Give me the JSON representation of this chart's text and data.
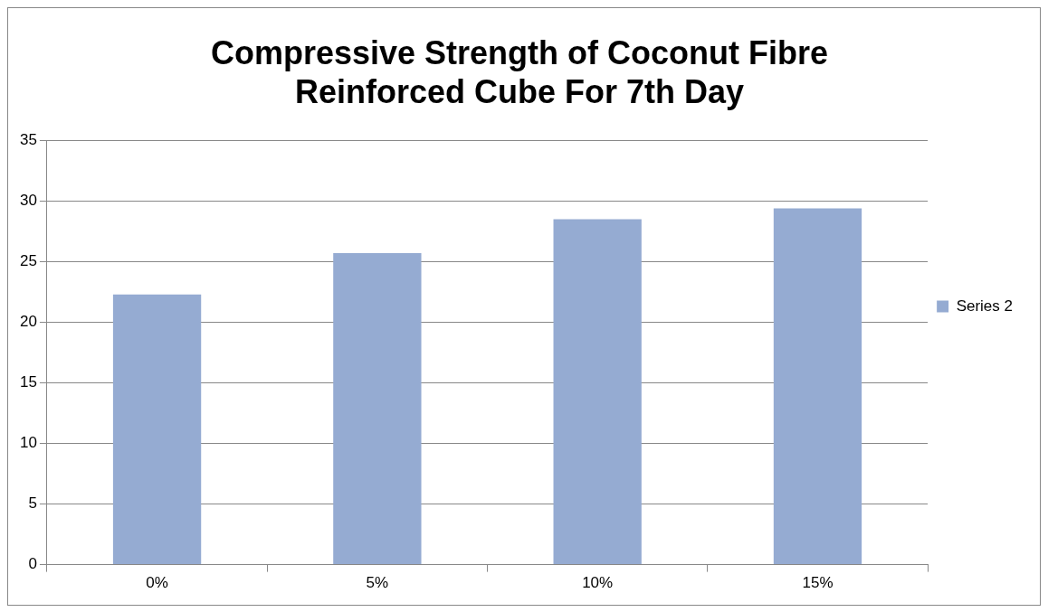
{
  "chart_data": {
    "type": "bar",
    "title": "Compressive Strength of Coconut Fibre Reinforced Cube For 7th Day",
    "categories": [
      "0%",
      "5%",
      "10%",
      "15%"
    ],
    "series": [
      {
        "name": "Series 2",
        "color": "#95abd2",
        "values": [
          22.3,
          25.7,
          28.5,
          29.4
        ]
      }
    ],
    "ylim": [
      0,
      35
    ],
    "yticks": [
      0,
      5,
      10,
      15,
      20,
      25,
      30,
      35
    ],
    "grid": "y",
    "legend": "right"
  }
}
